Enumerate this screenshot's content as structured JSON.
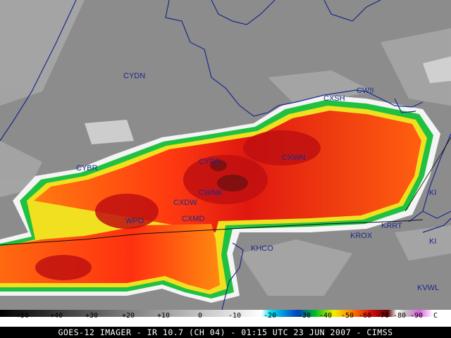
{
  "colors": {
    "background_gray": "#8a8a8a",
    "coast_line": "#1b2a8a",
    "station_text": "#1b2a8a",
    "cloud_core_red": "#e02010",
    "cloud_orange": "#ff6a10"
  },
  "stations": [
    {
      "label": "CYDN"
    },
    {
      "label": "CWII"
    },
    {
      "label": "CXSH"
    },
    {
      "label": "CYBR"
    },
    {
      "label": "CYPG"
    },
    {
      "label": "CXWN"
    },
    {
      "label": "CWNK"
    },
    {
      "label": "CXDW"
    },
    {
      "label": "WPO"
    },
    {
      "label": "CXMD"
    },
    {
      "label": "KHCO"
    },
    {
      "label": "KROX"
    },
    {
      "label": "KRRT"
    },
    {
      "label": "KI"
    },
    {
      "label": "KI"
    },
    {
      "label": "KVWL"
    }
  ],
  "colorbar": {
    "labels": [
      "+50",
      "+40",
      "+30",
      "+20",
      "+10",
      "0",
      "-10",
      "-20",
      "-30",
      "-40",
      "-50",
      "-60",
      "-70",
      "-80",
      "-90",
      "C"
    ]
  },
  "footer": {
    "caption": "GOES-12 IMAGER - IR 10.7 (CH 04) - 01:15 UTC 23 JUN 2007 - CIMSS"
  }
}
